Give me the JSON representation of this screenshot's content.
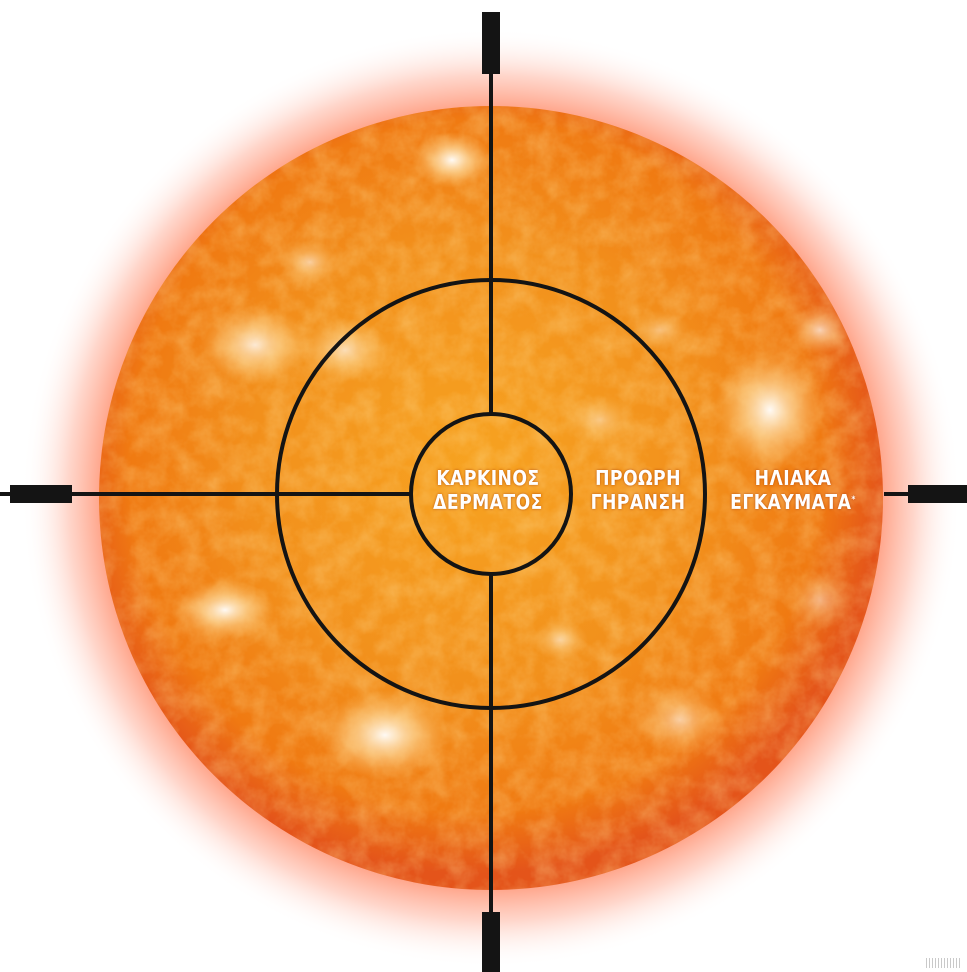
{
  "colors": {
    "sun_core": "#f7a321",
    "sun_mid": "#f07a12",
    "sun_edge": "#e4541a",
    "glow": "#ff6a3c",
    "crosshair": "#141414",
    "label": "#ffffff"
  },
  "rings": [
    {
      "name": "inner",
      "line1": "ΚΑΡΚΙΝΟΣ",
      "line2": "ΔΕΡΜΑΤΟΣ",
      "mark": ""
    },
    {
      "name": "middle",
      "line1": "ΠΡΟΩΡΗ",
      "line2": "ΓΗΡΑΝΣΗ",
      "mark": ""
    },
    {
      "name": "outer",
      "line1": "ΗΛΙΑΚΑ",
      "line2": "ΕΓΚΑΥΜΑΤΑ",
      "mark": "*"
    }
  ]
}
